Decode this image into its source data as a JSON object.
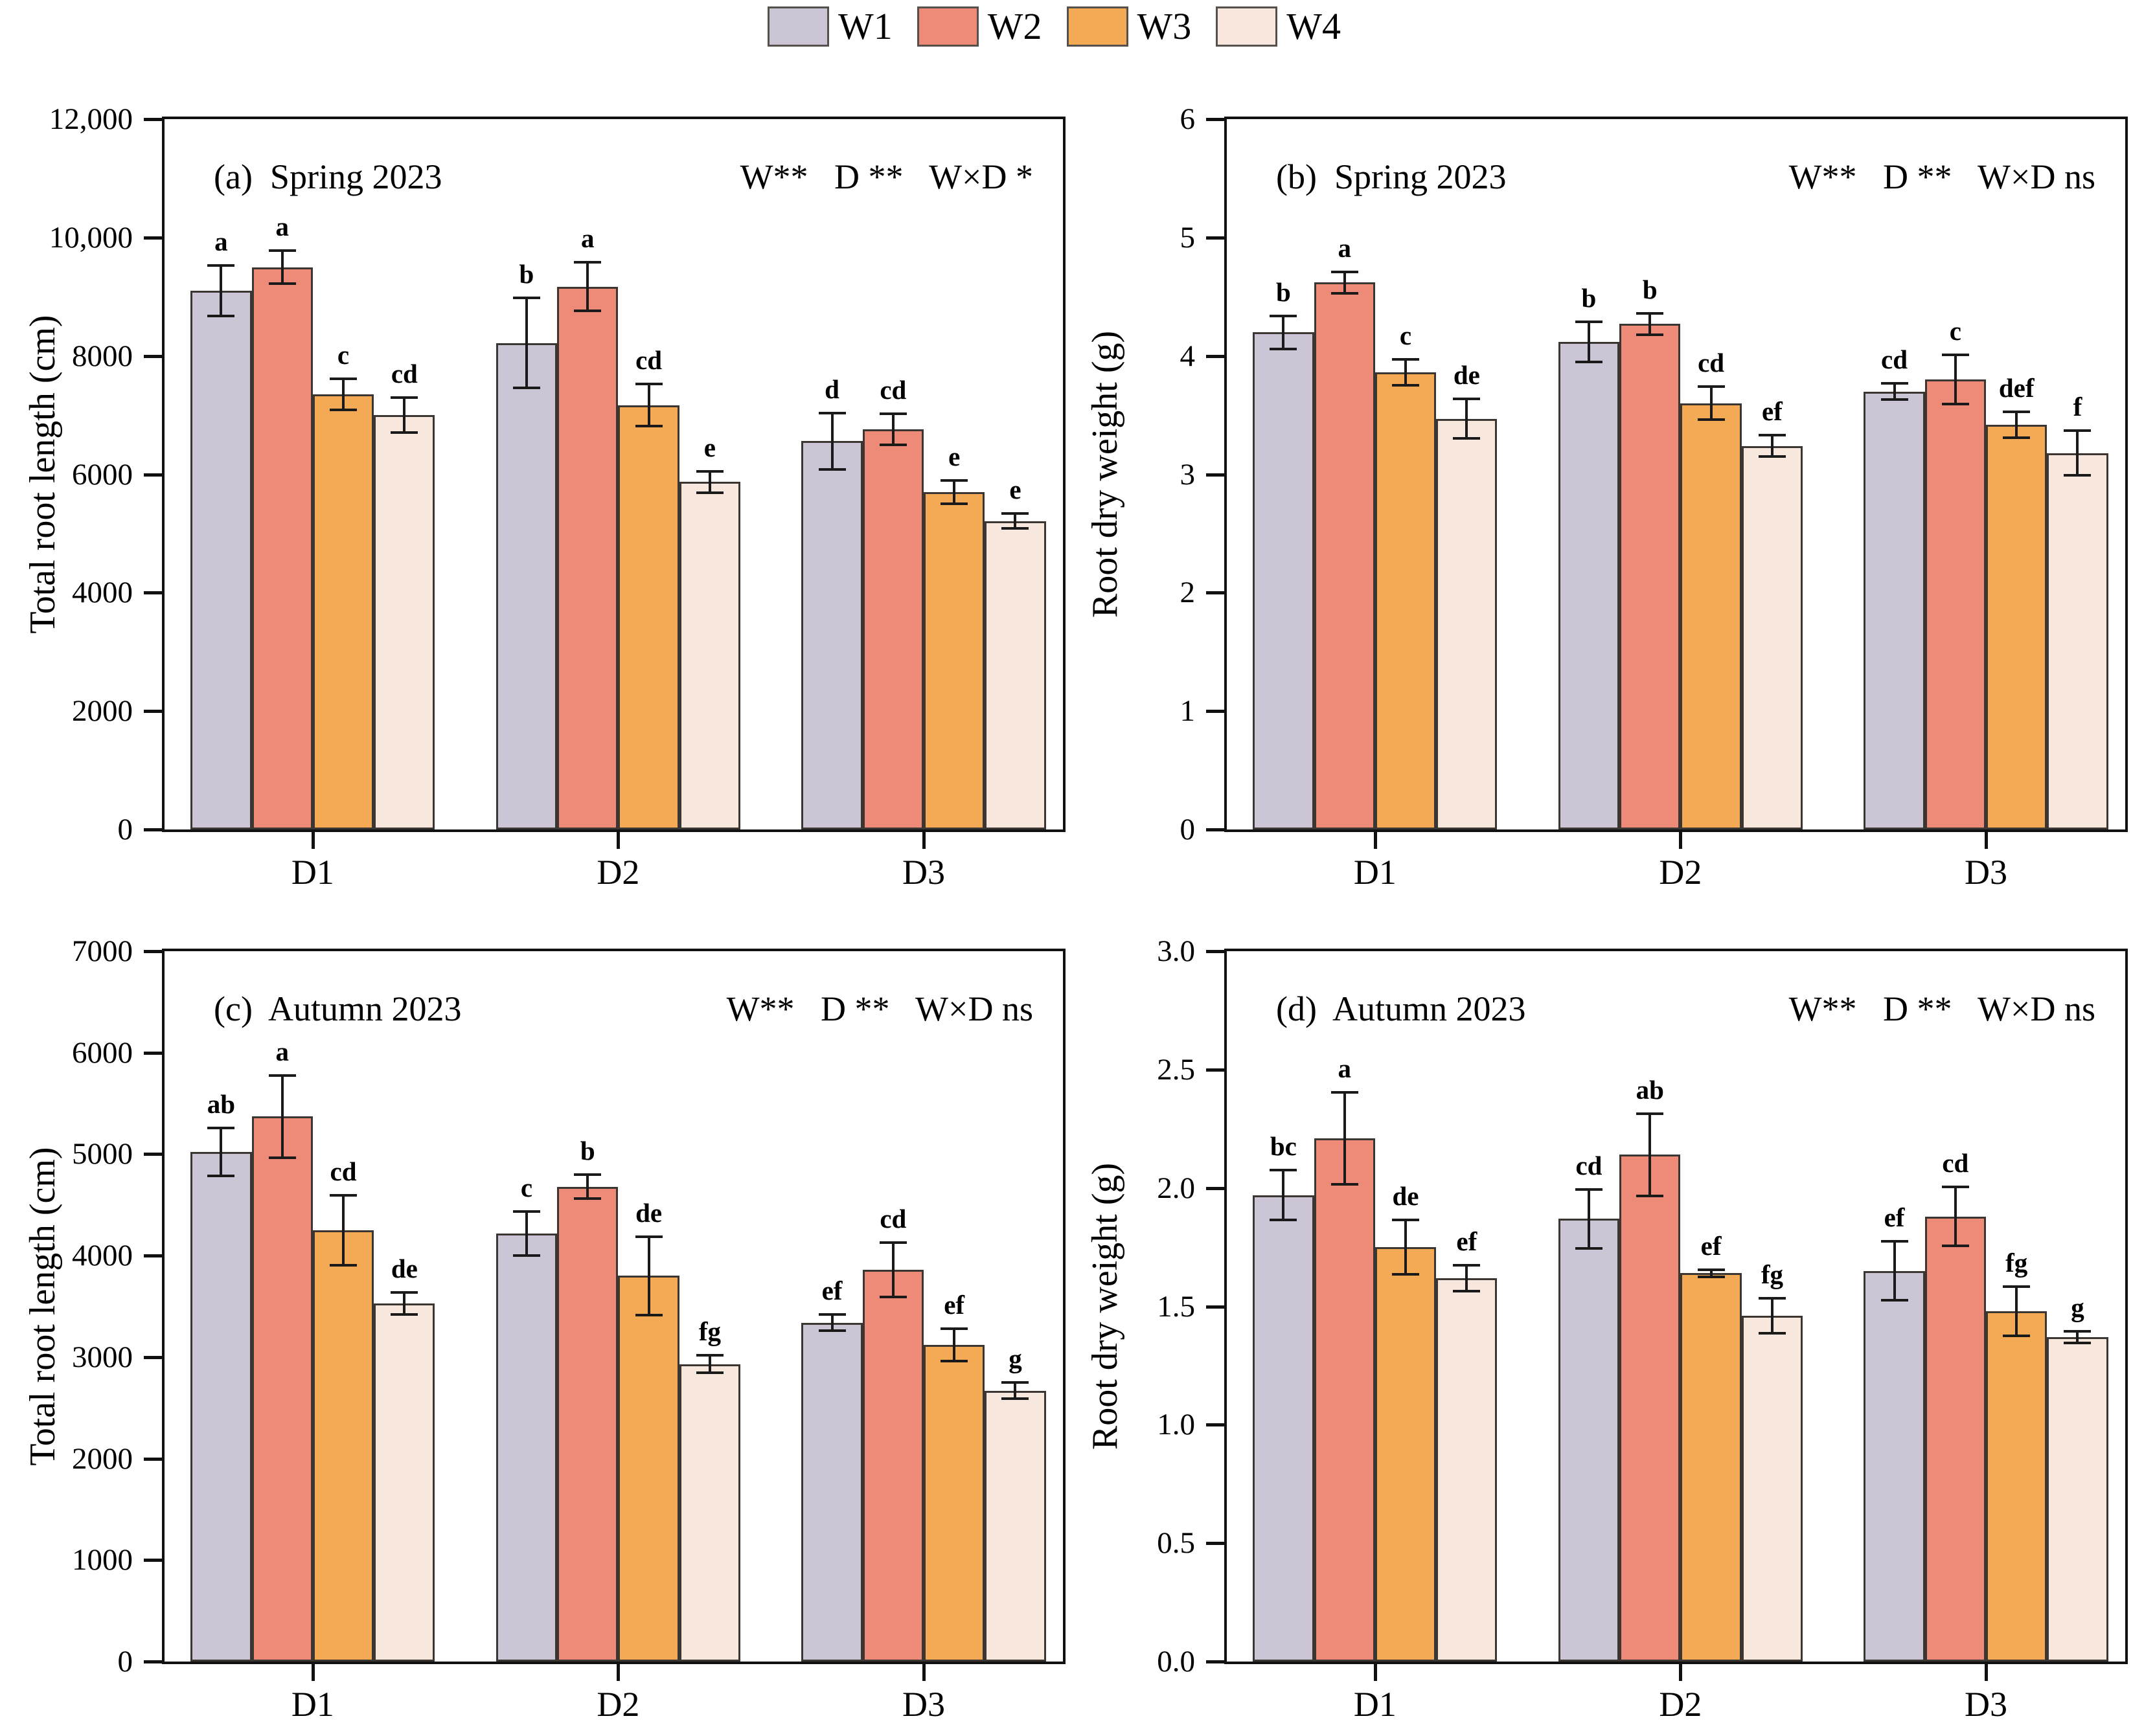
{
  "legend": {
    "items": [
      {
        "label": "W1",
        "color": "#cbc5d6",
        "border": "#55504c"
      },
      {
        "label": "W2",
        "color": "#ee8a78",
        "border": "#55504c"
      },
      {
        "label": "W3",
        "color": "#f4aa55",
        "border": "#55504c"
      },
      {
        "label": "W4",
        "color": "#f8e7dc",
        "border": "#55504c"
      }
    ]
  },
  "chart_data": [
    {
      "id": "a",
      "type": "bar",
      "title": "(a)  Spring 2023",
      "significance": "W**   D **   W×D *",
      "ylabel": "Total root length (cm)",
      "ylim": [
        0,
        12000
      ],
      "grid": false,
      "legend_position": "top-center",
      "yticks": [
        {
          "value": 0,
          "label": "0"
        },
        {
          "value": 2000,
          "label": "2000"
        },
        {
          "value": 4000,
          "label": "4000"
        },
        {
          "value": 6000,
          "label": "6000"
        },
        {
          "value": 8000,
          "label": "8000"
        },
        {
          "value": 10000,
          "label": "10,000"
        },
        {
          "value": 12000,
          "label": "12,000"
        }
      ],
      "series": [
        "W1",
        "W2",
        "W3",
        "W4"
      ],
      "groups": [
        {
          "category": "D1",
          "values": [
            9100,
            9500,
            7350,
            7000
          ],
          "errors": [
            450,
            300,
            280,
            320
          ],
          "letters": [
            "a",
            "a",
            "c",
            "cd"
          ]
        },
        {
          "category": "D2",
          "values": [
            8220,
            9170,
            7170,
            5870
          ],
          "errors": [
            780,
            430,
            380,
            200
          ],
          "letters": [
            "b",
            "a",
            "cd",
            "e"
          ]
        },
        {
          "category": "D3",
          "values": [
            6560,
            6760,
            5700,
            5210
          ],
          "errors": [
            500,
            280,
            220,
            150
          ],
          "letters": [
            "d",
            "cd",
            "e",
            "e"
          ]
        }
      ]
    },
    {
      "id": "b",
      "type": "bar",
      "title": "(b)  Spring 2023",
      "significance": "W**   D **   W×D ns",
      "ylabel": "Root dry weight (g)",
      "ylim": [
        0,
        6
      ],
      "grid": false,
      "legend_position": "top-center",
      "yticks": [
        {
          "value": 0,
          "label": "0"
        },
        {
          "value": 1,
          "label": "1"
        },
        {
          "value": 2,
          "label": "2"
        },
        {
          "value": 3,
          "label": "3"
        },
        {
          "value": 4,
          "label": "4"
        },
        {
          "value": 5,
          "label": "5"
        },
        {
          "value": 6,
          "label": "6"
        }
      ],
      "series": [
        "W1",
        "W2",
        "W3",
        "W4"
      ],
      "groups": [
        {
          "category": "D1",
          "values": [
            4.2,
            4.62,
            3.86,
            3.47
          ],
          "errors": [
            0.15,
            0.1,
            0.12,
            0.18
          ],
          "letters": [
            "b",
            "a",
            "c",
            "de"
          ]
        },
        {
          "category": "D2",
          "values": [
            4.12,
            4.27,
            3.6,
            3.24
          ],
          "errors": [
            0.18,
            0.1,
            0.15,
            0.1
          ],
          "letters": [
            "b",
            "b",
            "cd",
            "ef"
          ]
        },
        {
          "category": "D3",
          "values": [
            3.7,
            3.8,
            3.42,
            3.18
          ],
          "errors": [
            0.08,
            0.22,
            0.12,
            0.2
          ],
          "letters": [
            "cd",
            "c",
            "def",
            "f"
          ]
        }
      ]
    },
    {
      "id": "c",
      "type": "bar",
      "title": "(c)  Autumn 2023",
      "significance": "W**   D **   W×D ns",
      "ylabel": "Total root length (cm)",
      "ylim": [
        0,
        7000
      ],
      "grid": false,
      "legend_position": "top-center",
      "yticks": [
        {
          "value": 0,
          "label": "0"
        },
        {
          "value": 1000,
          "label": "1000"
        },
        {
          "value": 2000,
          "label": "2000"
        },
        {
          "value": 3000,
          "label": "3000"
        },
        {
          "value": 4000,
          "label": "4000"
        },
        {
          "value": 5000,
          "label": "5000"
        },
        {
          "value": 6000,
          "label": "6000"
        },
        {
          "value": 7000,
          "label": "7000"
        }
      ],
      "series": [
        "W1",
        "W2",
        "W3",
        "W4"
      ],
      "groups": [
        {
          "category": "D1",
          "values": [
            5020,
            5370,
            4250,
            3530
          ],
          "errors": [
            250,
            420,
            360,
            120
          ],
          "letters": [
            "ab",
            "a",
            "cd",
            "de"
          ]
        },
        {
          "category": "D2",
          "values": [
            4220,
            4680,
            3800,
            2930
          ],
          "errors": [
            230,
            130,
            400,
            100
          ],
          "letters": [
            "c",
            "b",
            "de",
            "fg"
          ]
        },
        {
          "category": "D3",
          "values": [
            3340,
            3860,
            3120,
            2670
          ],
          "errors": [
            90,
            280,
            170,
            90
          ],
          "letters": [
            "ef",
            "cd",
            "ef",
            "g"
          ]
        }
      ]
    },
    {
      "id": "d",
      "type": "bar",
      "title": "(d)  Autumn 2023",
      "significance": "W**   D **   W×D ns",
      "ylabel": "Root dry weight (g)",
      "ylim": [
        0,
        3
      ],
      "grid": false,
      "legend_position": "top-center",
      "yticks": [
        {
          "value": 0,
          "label": "0.0"
        },
        {
          "value": 0.5,
          "label": "0.5"
        },
        {
          "value": 1.0,
          "label": "1.0"
        },
        {
          "value": 1.5,
          "label": "1.5"
        },
        {
          "value": 2.0,
          "label": "2.0"
        },
        {
          "value": 2.5,
          "label": "2.5"
        },
        {
          "value": 3.0,
          "label": "3.0"
        }
      ],
      "series": [
        "W1",
        "W2",
        "W3",
        "W4"
      ],
      "groups": [
        {
          "category": "D1",
          "values": [
            1.97,
            2.21,
            1.75,
            1.62
          ],
          "errors": [
            0.11,
            0.2,
            0.12,
            0.06
          ],
          "letters": [
            "bc",
            "a",
            "de",
            "ef"
          ]
        },
        {
          "category": "D2",
          "values": [
            1.87,
            2.14,
            1.64,
            1.46
          ],
          "errors": [
            0.13,
            0.18,
            0.02,
            0.08
          ],
          "letters": [
            "cd",
            "ab",
            "ef",
            "fg"
          ]
        },
        {
          "category": "D3",
          "values": [
            1.65,
            1.88,
            1.48,
            1.37
          ],
          "errors": [
            0.13,
            0.13,
            0.11,
            0.03
          ],
          "letters": [
            "ef",
            "cd",
            "fg",
            "g"
          ]
        }
      ]
    }
  ]
}
